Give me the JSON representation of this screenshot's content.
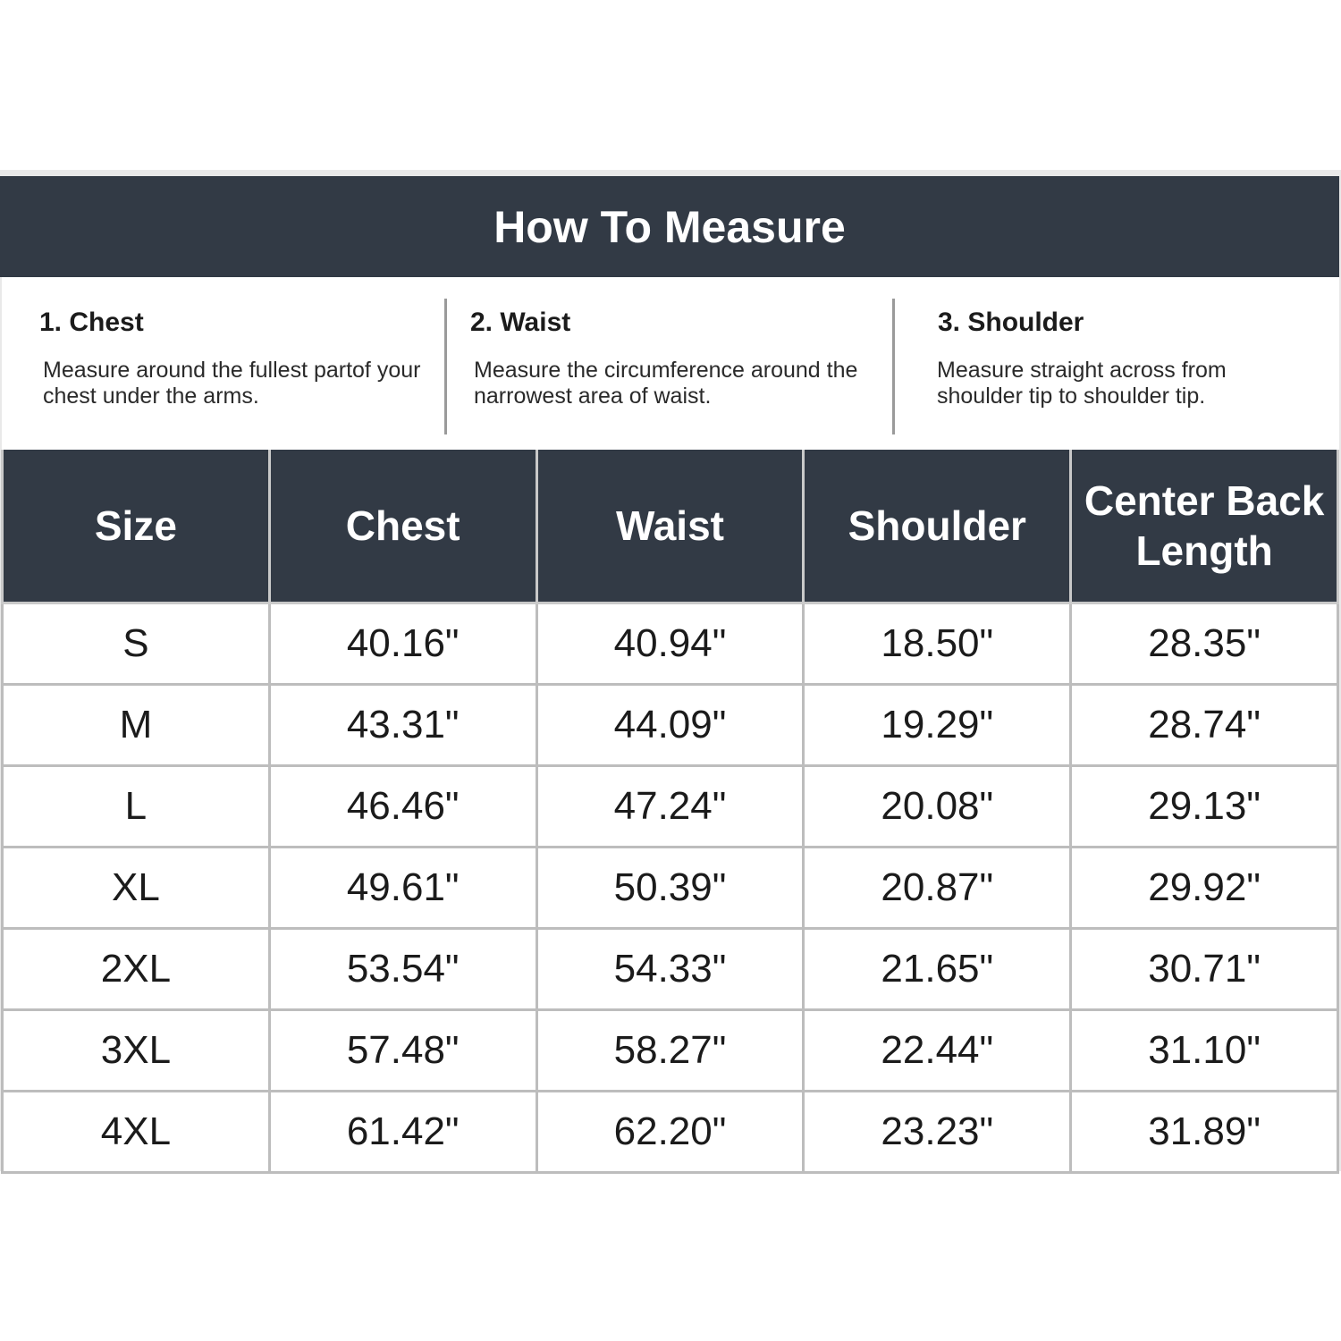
{
  "title": "How To Measure",
  "instructions": [
    {
      "heading": "1. Chest",
      "text": "Measure around the fullest partof your chest under the arms."
    },
    {
      "heading": "2. Waist",
      "text": "Measure the circumference around the narrowest area of waist."
    },
    {
      "heading": "3. Shoulder",
      "text": "Measure straight across from shoulder tip to shoulder tip."
    }
  ],
  "table": {
    "headers": [
      "Size",
      "Chest",
      "Waist",
      "Shoulder",
      "Center Back Length"
    ],
    "rows": [
      [
        "S",
        "40.16\"",
        "40.94\"",
        "18.50\"",
        "28.35\""
      ],
      [
        "M",
        "43.31\"",
        "44.09\"",
        "19.29\"",
        "28.74\""
      ],
      [
        "L",
        "46.46\"",
        "47.24\"",
        "20.08\"",
        "29.13\""
      ],
      [
        "XL",
        "49.61\"",
        "50.39\"",
        "20.87\"",
        "29.92\""
      ],
      [
        "2XL",
        "53.54\"",
        "54.33\"",
        "21.65\"",
        "30.71\""
      ],
      [
        "3XL",
        "57.48\"",
        "58.27\"",
        "22.44\"",
        "31.10\""
      ],
      [
        "4XL",
        "61.42\"",
        "62.20\"",
        "23.23\"",
        "31.89\""
      ]
    ]
  },
  "colors": {
    "header_bg": "#323a45",
    "border": "#bdbdbd"
  }
}
